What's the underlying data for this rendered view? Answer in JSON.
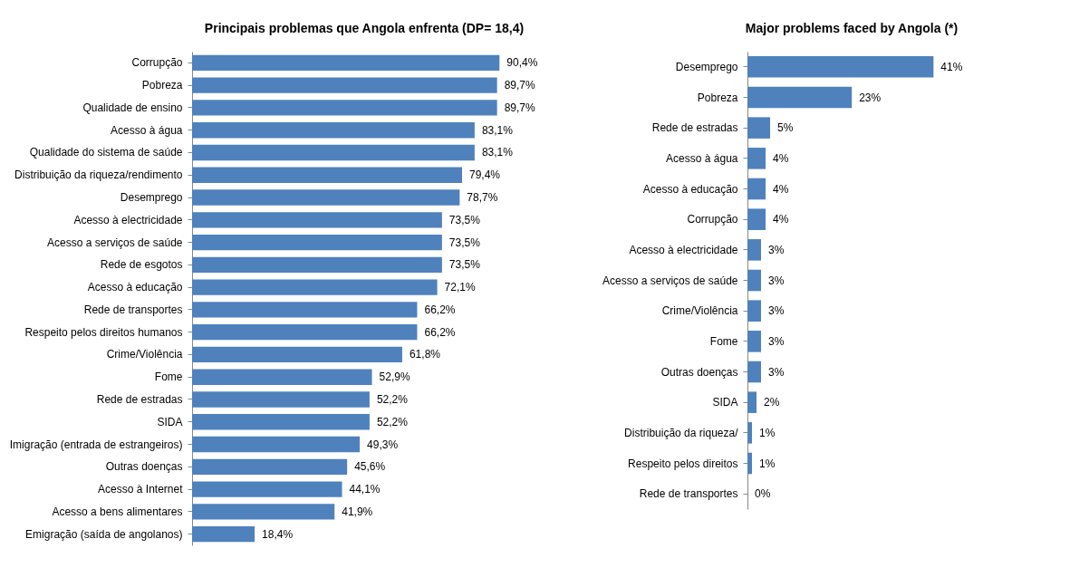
{
  "chart_data": [
    {
      "type": "bar",
      "orientation": "horizontal",
      "title": "Principais problemas que Angola enfrenta (DP= 18,4)",
      "tick_labels": "y",
      "grid": false,
      "categories": [
        "Corrupção",
        "Pobreza",
        "Qualidade de ensino",
        "Acesso à água",
        "Qualidade do sistema de saúde",
        "Distribuição da riqueza/rendimento",
        "Desemprego",
        "Acesso à electricidade",
        "Acesso a serviços de saúde",
        "Rede de esgotos",
        "Acesso à educação",
        "Rede de transportes",
        "Respeito pelos direitos humanos",
        "Crime/Violência",
        "Fome",
        "Rede de estradas",
        "SIDA",
        "Imigração (entrada de estrangeiros)",
        "Outras doenças",
        "Acesso à Internet",
        "Acesso a bens alimentares",
        "Emigração (saída de angolanos)"
      ],
      "values": [
        90.4,
        89.7,
        89.7,
        83.1,
        83.1,
        79.4,
        78.7,
        73.5,
        73.5,
        73.5,
        72.1,
        66.2,
        66.2,
        61.8,
        52.9,
        52.2,
        52.2,
        49.3,
        45.6,
        44.1,
        41.9,
        18.4
      ],
      "value_labels": [
        "90,4%",
        "89,7%",
        "89,7%",
        "83,1%",
        "83,1%",
        "79,4%",
        "78,7%",
        "73,5%",
        "73,5%",
        "73,5%",
        "72,1%",
        "66,2%",
        "66,2%",
        "61,8%",
        "52,9%",
        "52,2%",
        "52,2%",
        "49,3%",
        "45,6%",
        "44,1%",
        "41,9%",
        "18,4%"
      ],
      "color": "#4f81bd"
    },
    {
      "type": "bar",
      "orientation": "horizontal",
      "title": "Major problems faced by Angola (*)",
      "tick_labels": "y",
      "grid": false,
      "categories": [
        "Desemprego",
        "Pobreza",
        "Rede de estradas",
        "Acesso à água",
        "Acesso à educação",
        "Corrupção",
        "Acesso à electricidade",
        "Acesso a serviços de saúde",
        "Crime/Violência",
        "Fome",
        "Outras doenças",
        "SIDA",
        "Distribuição da riqueza/",
        "Respeito pelos direitos",
        "Rede de transportes"
      ],
      "values": [
        41,
        23,
        5,
        4,
        4,
        4,
        3,
        3,
        3,
        3,
        3,
        2,
        1,
        1,
        0
      ],
      "value_labels": [
        "41%",
        "23%",
        "5%",
        "4%",
        "4%",
        "4%",
        "3%",
        "3%",
        "3%",
        "3%",
        "3%",
        "2%",
        "1%",
        "1%",
        "0%"
      ],
      "color": "#4f81bd"
    }
  ]
}
